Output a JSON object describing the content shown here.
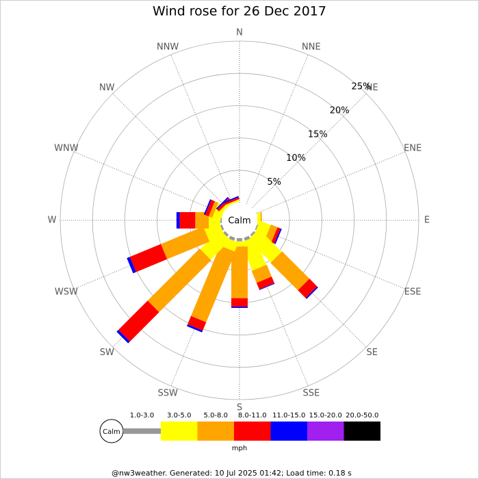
{
  "chart_data": {
    "type": "windrose",
    "title": "Wind rose for 26 Dec 2017",
    "categories": [
      "N",
      "NNE",
      "NE",
      "ENE",
      "E",
      "ESE",
      "SE",
      "SSE",
      "S",
      "SSW",
      "SW",
      "WSW",
      "W",
      "WNW",
      "NW",
      "NNW"
    ],
    "series": [
      {
        "name": "1.0-3.0",
        "color": "#999999",
        "values": [
          0,
          0,
          0,
          0,
          0,
          0.2,
          0.3,
          0.5,
          0.5,
          0.5,
          0.4,
          0.3,
          0.2,
          0,
          0,
          0
        ]
      },
      {
        "name": "3.0-5.0",
        "color": "#ffff00",
        "values": [
          0,
          0,
          0,
          0,
          0.5,
          1.8,
          5.0,
          4.7,
          0.8,
          1.5,
          4.3,
          2.5,
          1.8,
          1.3,
          0.4,
          0.3
        ]
      },
      {
        "name": "5.0-8.0",
        "color": "#ffa500",
        "values": [
          0,
          0,
          0,
          0,
          0.2,
          1.1,
          6.0,
          2.0,
          8.0,
          11.8,
          11.4,
          7.1,
          2.1,
          0.6,
          0.1,
          0
        ]
      },
      {
        "name": "8.0-11.0",
        "color": "#ff0000",
        "values": [
          0,
          0,
          0,
          0,
          0,
          0.5,
          1.7,
          1.1,
          1.3,
          1.4,
          6.4,
          5.2,
          2.4,
          0.6,
          0.4,
          0.3
        ]
      },
      {
        "name": "11.0-15.0",
        "color": "#0000ff",
        "values": [
          0,
          0,
          0,
          0,
          0,
          0.2,
          0.2,
          0.1,
          0.2,
          0.3,
          0.4,
          0.5,
          0.5,
          0.2,
          0.2,
          0.2
        ]
      },
      {
        "name": "15.0-20.0",
        "color": "#a020f0",
        "values": [
          0,
          0,
          0,
          0,
          0,
          0,
          0,
          0,
          0,
          0,
          0,
          0,
          0,
          0,
          0,
          0
        ]
      },
      {
        "name": "20.0-50.0",
        "color": "#000000",
        "values": [
          0,
          0,
          0,
          0,
          0,
          0,
          0,
          0,
          0,
          0,
          0,
          0,
          0,
          0,
          0,
          0
        ]
      }
    ],
    "rlim": [
      0,
      25
    ],
    "rticks": [
      {
        "value": 5,
        "label": "5%"
      },
      {
        "value": 10,
        "label": "10%"
      },
      {
        "value": 15,
        "label": "15%"
      },
      {
        "value": 20,
        "label": "20%"
      },
      {
        "value": 25,
        "label": "25%"
      }
    ],
    "calm_label": "Calm",
    "unit_label": "mph",
    "footer": "@nw3weather. Generated: 10 Jul 2025 01:42; Load time: 0.18 s"
  }
}
